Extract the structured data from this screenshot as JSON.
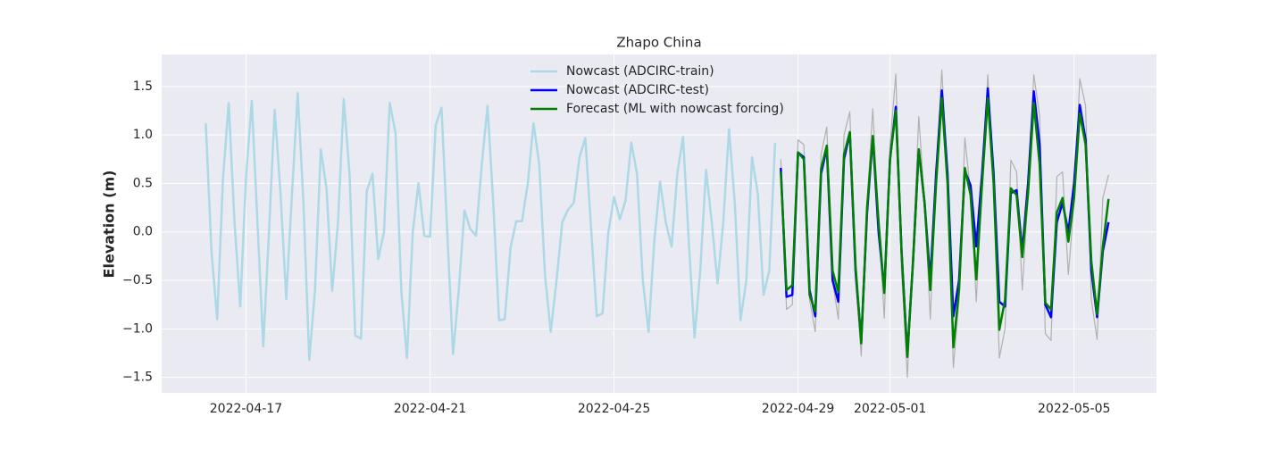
{
  "chart_data": {
    "type": "line",
    "title": "Zhapo China",
    "y_label": "Elevation (m)",
    "xlim": [
      "2022-04-15 04:00",
      "2022-05-06 19:00"
    ],
    "xticks": [
      "2022-04-17",
      "2022-04-21",
      "2022-04-25",
      "2022-04-29",
      "2022-05-01",
      "2022-05-05"
    ],
    "ylim": [
      -1.66,
      1.83
    ],
    "yticks": [
      {
        "value": -1.5,
        "label": "−1.5"
      },
      {
        "value": -1.0,
        "label": "−1.0"
      },
      {
        "value": -0.5,
        "label": "−0.5"
      },
      {
        "value": 0.0,
        "label": "0.0"
      },
      0.5,
      {
        "value": 1.0,
        "label": "1.0"
      },
      1.5
    ],
    "grid": true,
    "legend": "upper center",
    "series": [
      {
        "color": "#b0b0b0",
        "width": 1.2,
        "x": [
          "2022-04-28 15:00",
          "2022-04-28 18:00",
          "2022-04-28 21:00",
          "2022-04-29 00:00",
          "2022-04-29 03:00",
          "2022-04-29 06:00",
          "2022-04-29 09:00",
          "2022-04-29 12:00",
          "2022-04-29 15:00",
          "2022-04-29 18:00",
          "2022-04-29 21:00",
          "2022-04-30 00:00",
          "2022-04-30 03:00",
          "2022-04-30 06:00",
          "2022-04-30 09:00",
          "2022-04-30 12:00",
          "2022-04-30 15:00",
          "2022-04-30 18:00",
          "2022-04-30 21:00",
          "2022-05-01 00:00",
          "2022-05-01 03:00",
          "2022-05-01 06:00",
          "2022-05-01 09:00",
          "2022-05-01 12:00",
          "2022-05-01 15:00",
          "2022-05-01 18:00",
          "2022-05-01 21:00",
          "2022-05-02 00:00",
          "2022-05-02 03:00",
          "2022-05-02 06:00",
          "2022-05-02 09:00",
          "2022-05-02 12:00",
          "2022-05-02 15:00",
          "2022-05-02 18:00",
          "2022-05-02 21:00",
          "2022-05-03 00:00",
          "2022-05-03 03:00",
          "2022-05-03 06:00",
          "2022-05-03 09:00",
          "2022-05-03 12:00",
          "2022-05-03 15:00",
          "2022-05-03 18:00",
          "2022-05-03 21:00",
          "2022-05-04 00:00",
          "2022-05-04 03:00",
          "2022-05-04 06:00",
          "2022-05-04 09:00",
          "2022-05-04 12:00",
          "2022-05-04 15:00",
          "2022-05-04 18:00",
          "2022-05-04 21:00",
          "2022-05-05 00:00",
          "2022-05-05 03:00",
          "2022-05-05 06:00",
          "2022-05-05 09:00",
          "2022-05-05 12:00",
          "2022-05-05 15:00",
          "2022-05-05 18:00"
        ],
        "values": [
          0.75,
          -0.8,
          -0.75,
          0.95,
          0.9,
          -0.7,
          -1.03,
          0.8,
          1.08,
          -0.5,
          -0.9,
          1.0,
          1.24,
          -0.5,
          -1.28,
          0.3,
          1.27,
          0.1,
          -0.89,
          0.9,
          1.63,
          -0.4,
          -1.5,
          -0.2,
          1.19,
          0.3,
          -0.9,
          0.6,
          1.67,
          0.6,
          -1.4,
          -0.7,
          0.97,
          0.4,
          -0.72,
          0.5,
          1.62,
          0.5,
          -1.3,
          -1.0,
          0.74,
          0.62,
          -0.6,
          0.4,
          1.62,
          1.2,
          -1.05,
          -1.12,
          0.57,
          0.62,
          -0.44,
          0.3,
          1.58,
          1.3,
          -0.7,
          -1.11,
          0.35,
          0.59
        ]
      },
      {
        "name": "Nowcast (ADCIRC-train)",
        "color": "#add8e6",
        "width": 2.5,
        "x": [
          "2022-04-16 03:00",
          "2022-04-16 06:00",
          "2022-04-16 09:00",
          "2022-04-16 12:00",
          "2022-04-16 15:00",
          "2022-04-16 18:00",
          "2022-04-16 21:00",
          "2022-04-17 00:00",
          "2022-04-17 03:00",
          "2022-04-17 06:00",
          "2022-04-17 09:00",
          "2022-04-17 12:00",
          "2022-04-17 15:00",
          "2022-04-17 18:00",
          "2022-04-17 21:00",
          "2022-04-18 00:00",
          "2022-04-18 03:00",
          "2022-04-18 06:00",
          "2022-04-18 09:00",
          "2022-04-18 12:00",
          "2022-04-18 15:00",
          "2022-04-18 18:00",
          "2022-04-18 21:00",
          "2022-04-19 00:00",
          "2022-04-19 03:00",
          "2022-04-19 06:00",
          "2022-04-19 09:00",
          "2022-04-19 12:00",
          "2022-04-19 15:00",
          "2022-04-19 18:00",
          "2022-04-19 21:00",
          "2022-04-20 00:00",
          "2022-04-20 03:00",
          "2022-04-20 06:00",
          "2022-04-20 09:00",
          "2022-04-20 12:00",
          "2022-04-20 15:00",
          "2022-04-20 18:00",
          "2022-04-20 21:00",
          "2022-04-21 00:00",
          "2022-04-21 03:00",
          "2022-04-21 06:00",
          "2022-04-21 09:00",
          "2022-04-21 12:00",
          "2022-04-21 15:00",
          "2022-04-21 18:00",
          "2022-04-21 21:00",
          "2022-04-22 00:00",
          "2022-04-22 03:00",
          "2022-04-22 06:00",
          "2022-04-22 09:00",
          "2022-04-22 12:00",
          "2022-04-22 15:00",
          "2022-04-22 18:00",
          "2022-04-22 21:00",
          "2022-04-23 00:00",
          "2022-04-23 03:00",
          "2022-04-23 06:00",
          "2022-04-23 09:00",
          "2022-04-23 12:00",
          "2022-04-23 15:00",
          "2022-04-23 18:00",
          "2022-04-23 21:00",
          "2022-04-24 00:00",
          "2022-04-24 03:00",
          "2022-04-24 06:00",
          "2022-04-24 09:00",
          "2022-04-24 12:00",
          "2022-04-24 15:00",
          "2022-04-24 18:00",
          "2022-04-24 21:00",
          "2022-04-25 00:00",
          "2022-04-25 03:00",
          "2022-04-25 06:00",
          "2022-04-25 09:00",
          "2022-04-25 12:00",
          "2022-04-25 15:00",
          "2022-04-25 18:00",
          "2022-04-25 21:00",
          "2022-04-26 00:00",
          "2022-04-26 03:00",
          "2022-04-26 06:00",
          "2022-04-26 09:00",
          "2022-04-26 12:00",
          "2022-04-26 15:00",
          "2022-04-26 18:00",
          "2022-04-26 21:00",
          "2022-04-27 00:00",
          "2022-04-27 03:00",
          "2022-04-27 06:00",
          "2022-04-27 09:00",
          "2022-04-27 12:00",
          "2022-04-27 15:00",
          "2022-04-27 18:00",
          "2022-04-27 21:00",
          "2022-04-28 00:00",
          "2022-04-28 03:00",
          "2022-04-28 06:00",
          "2022-04-28 09:00",
          "2022-04-28 12:00"
        ],
        "values": [
          1.12,
          -0.2,
          -0.9,
          0.55,
          1.33,
          0.1,
          -0.77,
          0.55,
          1.35,
          0.1,
          -1.18,
          0.0,
          1.26,
          0.4,
          -0.69,
          0.4,
          1.43,
          0.3,
          -1.32,
          -0.6,
          0.85,
          0.45,
          -0.61,
          0.1,
          1.37,
          0.6,
          -1.07,
          -1.1,
          0.42,
          0.6,
          -0.28,
          0.0,
          1.33,
          1.02,
          -0.6,
          -1.3,
          0.0,
          0.5,
          -0.04,
          -0.05,
          1.1,
          1.28,
          0.0,
          -1.26,
          -0.6,
          0.22,
          0.03,
          -0.04,
          0.7,
          1.3,
          0.3,
          -0.91,
          -0.9,
          -0.16,
          0.11,
          0.11,
          0.5,
          1.12,
          0.7,
          -0.45,
          -1.03,
          -0.5,
          0.1,
          0.23,
          0.3,
          0.77,
          0.97,
          0.05,
          -0.87,
          -0.84,
          -0.01,
          0.36,
          0.13,
          0.32,
          0.92,
          0.6,
          -0.5,
          -1.03,
          -0.1,
          0.52,
          0.1,
          -0.15,
          0.6,
          0.98,
          -0.1,
          -1.09,
          -0.4,
          0.64,
          0.1,
          -0.53,
          0.1,
          1.06,
          0.3,
          -0.91,
          -0.5,
          0.77,
          0.4,
          -0.65,
          -0.4,
          0.92
        ]
      },
      {
        "name": "Nowcast (ADCIRC-test)",
        "color": "#0000ff",
        "width": 2.5,
        "x": [
          "2022-04-28 15:00",
          "2022-04-28 18:00",
          "2022-04-28 21:00",
          "2022-04-29 00:00",
          "2022-04-29 03:00",
          "2022-04-29 06:00",
          "2022-04-29 09:00",
          "2022-04-29 12:00",
          "2022-04-29 15:00",
          "2022-04-29 18:00",
          "2022-04-29 21:00",
          "2022-04-30 00:00",
          "2022-04-30 03:00",
          "2022-04-30 06:00",
          "2022-04-30 09:00",
          "2022-04-30 12:00",
          "2022-04-30 15:00",
          "2022-04-30 18:00",
          "2022-04-30 21:00",
          "2022-05-01 00:00",
          "2022-05-01 03:00",
          "2022-05-01 06:00",
          "2022-05-01 09:00",
          "2022-05-01 12:00",
          "2022-05-01 15:00",
          "2022-05-01 18:00",
          "2022-05-01 21:00",
          "2022-05-02 00:00",
          "2022-05-02 03:00",
          "2022-05-02 06:00",
          "2022-05-02 09:00",
          "2022-05-02 12:00",
          "2022-05-02 15:00",
          "2022-05-02 18:00",
          "2022-05-02 21:00",
          "2022-05-03 00:00",
          "2022-05-03 03:00",
          "2022-05-03 06:00",
          "2022-05-03 09:00",
          "2022-05-03 12:00",
          "2022-05-03 15:00",
          "2022-05-03 18:00",
          "2022-05-03 21:00",
          "2022-05-04 00:00",
          "2022-05-04 03:00",
          "2022-05-04 06:00",
          "2022-05-04 09:00",
          "2022-05-04 12:00",
          "2022-05-04 15:00",
          "2022-05-04 18:00",
          "2022-05-04 21:00",
          "2022-05-05 00:00",
          "2022-05-05 03:00",
          "2022-05-05 06:00",
          "2022-05-05 09:00",
          "2022-05-05 12:00",
          "2022-05-05 15:00",
          "2022-05-05 18:00"
        ],
        "values": [
          0.66,
          -0.67,
          -0.65,
          0.82,
          0.77,
          -0.6,
          -0.87,
          0.6,
          0.87,
          -0.5,
          -0.72,
          0.75,
          1.02,
          -0.4,
          -1.12,
          0.2,
          0.98,
          0.0,
          -0.6,
          0.75,
          1.29,
          -0.2,
          -1.27,
          -0.3,
          0.85,
          0.3,
          -0.5,
          0.6,
          1.46,
          0.6,
          -0.87,
          -0.5,
          0.63,
          0.48,
          -0.15,
          0.6,
          1.48,
          0.6,
          -0.72,
          -0.77,
          0.4,
          0.43,
          -0.2,
          0.5,
          1.45,
          0.9,
          -0.75,
          -0.88,
          0.1,
          0.3,
          0.0,
          0.5,
          1.31,
          0.95,
          -0.4,
          -0.88,
          -0.2,
          0.1
        ]
      },
      {
        "name": "Forecast (ML with nowcast forcing)",
        "color": "#008000",
        "width": 2.5,
        "x": [
          "2022-04-28 15:00",
          "2022-04-28 18:00",
          "2022-04-28 21:00",
          "2022-04-29 00:00",
          "2022-04-29 03:00",
          "2022-04-29 06:00",
          "2022-04-29 09:00",
          "2022-04-29 12:00",
          "2022-04-29 15:00",
          "2022-04-29 18:00",
          "2022-04-29 21:00",
          "2022-04-30 00:00",
          "2022-04-30 03:00",
          "2022-04-30 06:00",
          "2022-04-30 09:00",
          "2022-04-30 12:00",
          "2022-04-30 15:00",
          "2022-04-30 18:00",
          "2022-04-30 21:00",
          "2022-05-01 00:00",
          "2022-05-01 03:00",
          "2022-05-01 06:00",
          "2022-05-01 09:00",
          "2022-05-01 12:00",
          "2022-05-01 15:00",
          "2022-05-01 18:00",
          "2022-05-01 21:00",
          "2022-05-02 00:00",
          "2022-05-02 03:00",
          "2022-05-02 06:00",
          "2022-05-02 09:00",
          "2022-05-02 12:00",
          "2022-05-02 15:00",
          "2022-05-02 18:00",
          "2022-05-02 21:00",
          "2022-05-03 00:00",
          "2022-05-03 03:00",
          "2022-05-03 06:00",
          "2022-05-03 09:00",
          "2022-05-03 12:00",
          "2022-05-03 15:00",
          "2022-05-03 18:00",
          "2022-05-03 21:00",
          "2022-05-04 00:00",
          "2022-05-04 03:00",
          "2022-05-04 06:00",
          "2022-05-04 09:00",
          "2022-05-04 12:00",
          "2022-05-04 15:00",
          "2022-05-04 18:00",
          "2022-05-04 21:00",
          "2022-05-05 00:00",
          "2022-05-05 03:00",
          "2022-05-05 06:00",
          "2022-05-05 09:00",
          "2022-05-05 12:00",
          "2022-05-05 15:00",
          "2022-05-05 18:00"
        ],
        "values": [
          0.62,
          -0.6,
          -0.55,
          0.82,
          0.75,
          -0.65,
          -0.82,
          0.65,
          0.89,
          -0.4,
          -0.62,
          0.8,
          1.03,
          -0.35,
          -1.15,
          0.25,
          0.99,
          0.1,
          -0.63,
          0.75,
          1.25,
          -0.2,
          -1.29,
          -0.3,
          0.85,
          0.3,
          -0.6,
          0.5,
          1.38,
          0.5,
          -1.19,
          -0.6,
          0.66,
          0.38,
          -0.49,
          0.5,
          1.38,
          0.5,
          -1.01,
          -0.7,
          0.45,
          0.38,
          -0.26,
          0.4,
          1.33,
          0.7,
          -0.73,
          -0.8,
          0.2,
          0.35,
          -0.1,
          0.35,
          1.22,
          0.9,
          -0.3,
          -0.85,
          -0.15,
          0.34
        ]
      }
    ]
  }
}
